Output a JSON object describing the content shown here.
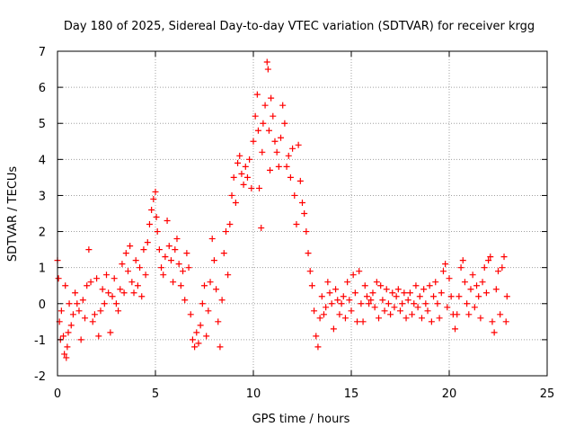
{
  "colors": {
    "series": "#ff0000",
    "grid": "#a0a0a0",
    "axes": "#000000",
    "background": "#ffffff"
  },
  "chart_data": {
    "type": "scatter",
    "title": "Day 180 of 2025, Sidereal Day-to-day VTEC variation (SDTVAR) for receiver krgg",
    "xlabel": "GPS time / hours",
    "ylabel": "SDTVAR / TECUs",
    "xlim": [
      0,
      25
    ],
    "ylim": [
      -2,
      7
    ],
    "xticks": [
      0,
      5,
      10,
      15,
      20,
      25
    ],
    "yticks": [
      -2,
      -1,
      0,
      1,
      2,
      3,
      4,
      5,
      6,
      7
    ],
    "grid": true,
    "marker": "+",
    "series": [
      {
        "name": "SDTVAR",
        "points": [
          [
            0.0,
            1.2
          ],
          [
            0.05,
            0.7
          ],
          [
            0.1,
            -0.5
          ],
          [
            0.15,
            -1.0
          ],
          [
            0.2,
            -0.2
          ],
          [
            0.3,
            -0.9
          ],
          [
            0.35,
            -1.4
          ],
          [
            0.4,
            0.5
          ],
          [
            0.45,
            -1.5
          ],
          [
            0.5,
            -1.2
          ],
          [
            0.55,
            -0.8
          ],
          [
            0.6,
            0.0
          ],
          [
            0.7,
            -0.6
          ],
          [
            0.8,
            -0.3
          ],
          [
            0.9,
            0.3
          ],
          [
            1.0,
            0.0
          ],
          [
            1.1,
            -0.2
          ],
          [
            1.2,
            -1.0
          ],
          [
            1.3,
            0.1
          ],
          [
            1.4,
            -0.4
          ],
          [
            1.5,
            0.5
          ],
          [
            1.6,
            1.5
          ],
          [
            1.7,
            0.6
          ],
          [
            1.8,
            -0.5
          ],
          [
            1.9,
            -0.3
          ],
          [
            2.0,
            0.7
          ],
          [
            2.1,
            -0.9
          ],
          [
            2.2,
            -0.2
          ],
          [
            2.3,
            0.4
          ],
          [
            2.4,
            0.0
          ],
          [
            2.5,
            0.8
          ],
          [
            2.6,
            0.3
          ],
          [
            2.7,
            -0.8
          ],
          [
            2.8,
            0.2
          ],
          [
            2.9,
            0.7
          ],
          [
            3.0,
            0.0
          ],
          [
            3.1,
            -0.2
          ],
          [
            3.2,
            0.4
          ],
          [
            3.3,
            1.1
          ],
          [
            3.4,
            0.3
          ],
          [
            3.5,
            1.4
          ],
          [
            3.6,
            0.9
          ],
          [
            3.7,
            1.6
          ],
          [
            3.8,
            0.6
          ],
          [
            3.9,
            0.3
          ],
          [
            4.0,
            1.2
          ],
          [
            4.1,
            0.5
          ],
          [
            4.2,
            1.0
          ],
          [
            4.3,
            0.2
          ],
          [
            4.4,
            1.5
          ],
          [
            4.5,
            0.8
          ],
          [
            4.6,
            1.7
          ],
          [
            4.7,
            2.2
          ],
          [
            4.8,
            2.6
          ],
          [
            4.9,
            2.9
          ],
          [
            5.0,
            3.1
          ],
          [
            5.05,
            2.4
          ],
          [
            5.1,
            2.0
          ],
          [
            5.2,
            1.5
          ],
          [
            5.3,
            1.0
          ],
          [
            5.4,
            0.8
          ],
          [
            5.5,
            1.3
          ],
          [
            5.6,
            2.3
          ],
          [
            5.7,
            1.6
          ],
          [
            5.8,
            1.2
          ],
          [
            5.9,
            0.6
          ],
          [
            6.0,
            1.5
          ],
          [
            6.1,
            1.8
          ],
          [
            6.2,
            1.1
          ],
          [
            6.3,
            0.5
          ],
          [
            6.4,
            0.9
          ],
          [
            6.5,
            0.1
          ],
          [
            6.6,
            1.4
          ],
          [
            6.7,
            1.0
          ],
          [
            6.8,
            -0.3
          ],
          [
            6.9,
            -1.0
          ],
          [
            7.0,
            -1.2
          ],
          [
            7.1,
            -0.8
          ],
          [
            7.2,
            -1.1
          ],
          [
            7.3,
            -0.6
          ],
          [
            7.4,
            0.0
          ],
          [
            7.5,
            0.5
          ],
          [
            7.6,
            -0.9
          ],
          [
            7.7,
            -0.2
          ],
          [
            7.8,
            0.6
          ],
          [
            7.9,
            1.8
          ],
          [
            8.0,
            1.2
          ],
          [
            8.1,
            0.4
          ],
          [
            8.2,
            -0.5
          ],
          [
            8.3,
            -1.2
          ],
          [
            8.4,
            0.1
          ],
          [
            8.5,
            1.4
          ],
          [
            8.6,
            2.0
          ],
          [
            8.7,
            0.8
          ],
          [
            8.8,
            2.2
          ],
          [
            8.9,
            3.0
          ],
          [
            9.0,
            3.5
          ],
          [
            9.1,
            2.8
          ],
          [
            9.2,
            3.9
          ],
          [
            9.3,
            4.1
          ],
          [
            9.4,
            3.6
          ],
          [
            9.5,
            3.3
          ],
          [
            9.6,
            3.8
          ],
          [
            9.7,
            3.5
          ],
          [
            9.8,
            4.0
          ],
          [
            9.9,
            3.2
          ],
          [
            10.0,
            4.5
          ],
          [
            10.1,
            5.2
          ],
          [
            10.2,
            5.8
          ],
          [
            10.25,
            4.8
          ],
          [
            10.3,
            3.2
          ],
          [
            10.4,
            2.1
          ],
          [
            10.45,
            4.2
          ],
          [
            10.5,
            5.0
          ],
          [
            10.6,
            5.5
          ],
          [
            10.7,
            6.7
          ],
          [
            10.75,
            6.5
          ],
          [
            10.8,
            4.8
          ],
          [
            10.85,
            3.7
          ],
          [
            10.9,
            5.7
          ],
          [
            11.0,
            5.2
          ],
          [
            11.1,
            4.5
          ],
          [
            11.2,
            4.2
          ],
          [
            11.3,
            3.8
          ],
          [
            11.4,
            4.6
          ],
          [
            11.5,
            5.5
          ],
          [
            11.6,
            5.0
          ],
          [
            11.7,
            3.8
          ],
          [
            11.8,
            4.1
          ],
          [
            11.9,
            3.5
          ],
          [
            12.0,
            4.3
          ],
          [
            12.1,
            3.0
          ],
          [
            12.2,
            2.2
          ],
          [
            12.3,
            4.4
          ],
          [
            12.4,
            3.4
          ],
          [
            12.5,
            2.8
          ],
          [
            12.6,
            2.5
          ],
          [
            12.7,
            2.0
          ],
          [
            12.8,
            1.4
          ],
          [
            12.9,
            0.9
          ],
          [
            13.0,
            0.5
          ],
          [
            13.1,
            -0.2
          ],
          [
            13.2,
            -0.9
          ],
          [
            13.3,
            -1.2
          ],
          [
            13.4,
            -0.4
          ],
          [
            13.5,
            0.2
          ],
          [
            13.6,
            -0.3
          ],
          [
            13.7,
            -0.1
          ],
          [
            13.8,
            0.6
          ],
          [
            13.9,
            0.3
          ],
          [
            14.0,
            0.0
          ],
          [
            14.1,
            -0.7
          ],
          [
            14.2,
            0.4
          ],
          [
            14.3,
            0.1
          ],
          [
            14.4,
            -0.3
          ],
          [
            14.5,
            0.0
          ],
          [
            14.6,
            0.2
          ],
          [
            14.7,
            -0.4
          ],
          [
            14.8,
            0.6
          ],
          [
            14.9,
            0.1
          ],
          [
            15.0,
            -0.2
          ],
          [
            15.1,
            0.8
          ],
          [
            15.2,
            0.3
          ],
          [
            15.3,
            -0.5
          ],
          [
            15.4,
            0.9
          ],
          [
            15.5,
            0.0
          ],
          [
            15.6,
            -0.5
          ],
          [
            15.7,
            0.5
          ],
          [
            15.8,
            0.2
          ],
          [
            15.9,
            0.0
          ],
          [
            16.0,
            0.1
          ],
          [
            16.1,
            0.3
          ],
          [
            16.2,
            -0.1
          ],
          [
            16.3,
            0.6
          ],
          [
            16.4,
            -0.4
          ],
          [
            16.5,
            0.5
          ],
          [
            16.6,
            0.1
          ],
          [
            16.7,
            -0.2
          ],
          [
            16.8,
            0.4
          ],
          [
            16.9,
            0.0
          ],
          [
            17.0,
            -0.3
          ],
          [
            17.1,
            0.3
          ],
          [
            17.2,
            -0.1
          ],
          [
            17.3,
            0.2
          ],
          [
            17.4,
            0.4
          ],
          [
            17.5,
            -0.2
          ],
          [
            17.6,
            0.0
          ],
          [
            17.7,
            0.3
          ],
          [
            17.8,
            -0.4
          ],
          [
            17.9,
            0.1
          ],
          [
            18.0,
            0.3
          ],
          [
            18.1,
            -0.3
          ],
          [
            18.2,
            0.0
          ],
          [
            18.3,
            0.5
          ],
          [
            18.4,
            -0.1
          ],
          [
            18.5,
            0.2
          ],
          [
            18.6,
            -0.4
          ],
          [
            18.7,
            0.4
          ],
          [
            18.8,
            0.0
          ],
          [
            18.9,
            -0.2
          ],
          [
            19.0,
            0.5
          ],
          [
            19.1,
            -0.5
          ],
          [
            19.2,
            0.2
          ],
          [
            19.3,
            0.6
          ],
          [
            19.4,
            0.0
          ],
          [
            19.5,
            -0.4
          ],
          [
            19.6,
            0.3
          ],
          [
            19.7,
            0.9
          ],
          [
            19.8,
            1.1
          ],
          [
            19.9,
            -0.1
          ],
          [
            20.0,
            0.7
          ],
          [
            20.1,
            0.2
          ],
          [
            20.2,
            -0.3
          ],
          [
            20.3,
            -0.7
          ],
          [
            20.4,
            -0.3
          ],
          [
            20.5,
            0.2
          ],
          [
            20.6,
            1.0
          ],
          [
            20.7,
            1.2
          ],
          [
            20.8,
            0.6
          ],
          [
            20.9,
            0.0
          ],
          [
            21.0,
            -0.3
          ],
          [
            21.1,
            0.4
          ],
          [
            21.2,
            0.8
          ],
          [
            21.3,
            -0.1
          ],
          [
            21.4,
            0.5
          ],
          [
            21.5,
            0.2
          ],
          [
            21.6,
            -0.4
          ],
          [
            21.7,
            0.6
          ],
          [
            21.8,
            1.0
          ],
          [
            21.9,
            0.3
          ],
          [
            22.0,
            1.2
          ],
          [
            22.1,
            1.3
          ],
          [
            22.2,
            -0.5
          ],
          [
            22.3,
            -0.8
          ],
          [
            22.4,
            0.4
          ],
          [
            22.5,
            0.9
          ],
          [
            22.6,
            -0.3
          ],
          [
            22.7,
            1.0
          ],
          [
            22.8,
            1.3
          ],
          [
            22.9,
            -0.5
          ],
          [
            22.95,
            0.2
          ]
        ]
      }
    ]
  }
}
